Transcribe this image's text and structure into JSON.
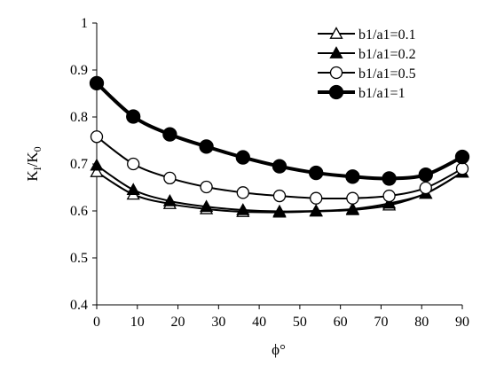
{
  "chart_data": {
    "type": "line",
    "xlabel": "ϕ°",
    "ylabel": {
      "main": "K",
      "sub1": "I",
      "slash": "/K",
      "sub2": "0"
    },
    "xlim": [
      0,
      90
    ],
    "ylim": [
      0.4,
      1.0
    ],
    "x_ticks": [
      "0",
      "10",
      "20",
      "30",
      "40",
      "50",
      "60",
      "70",
      "80",
      "90"
    ],
    "y_ticks": [
      "0.4",
      "0.5",
      "0.6",
      "0.7",
      "0.8",
      "0.9",
      "1"
    ],
    "grid": false,
    "legend_position": "top-right",
    "x": [
      0,
      9,
      18,
      27,
      36,
      45,
      54,
      63,
      72,
      81,
      90
    ],
    "series": [
      {
        "name": "b1/a1=0.1",
        "marker": "triangle-open",
        "values": [
          0.683,
          0.635,
          0.615,
          0.604,
          0.598,
          0.597,
          0.599,
          0.602,
          0.612,
          0.637,
          0.682
        ]
      },
      {
        "name": "b1/a1=0.2",
        "marker": "triangle-filled",
        "values": [
          0.697,
          0.645,
          0.621,
          0.609,
          0.602,
          0.599,
          0.6,
          0.604,
          0.616,
          0.637,
          0.682
        ]
      },
      {
        "name": "b1/a1=0.5",
        "marker": "circle-open",
        "values": [
          0.758,
          0.7,
          0.67,
          0.651,
          0.639,
          0.632,
          0.627,
          0.627,
          0.632,
          0.649,
          0.69
        ]
      },
      {
        "name": "b1/a1=1",
        "marker": "circle-filled",
        "values": [
          0.872,
          0.801,
          0.763,
          0.737,
          0.714,
          0.695,
          0.681,
          0.673,
          0.669,
          0.677,
          0.715
        ]
      }
    ]
  }
}
